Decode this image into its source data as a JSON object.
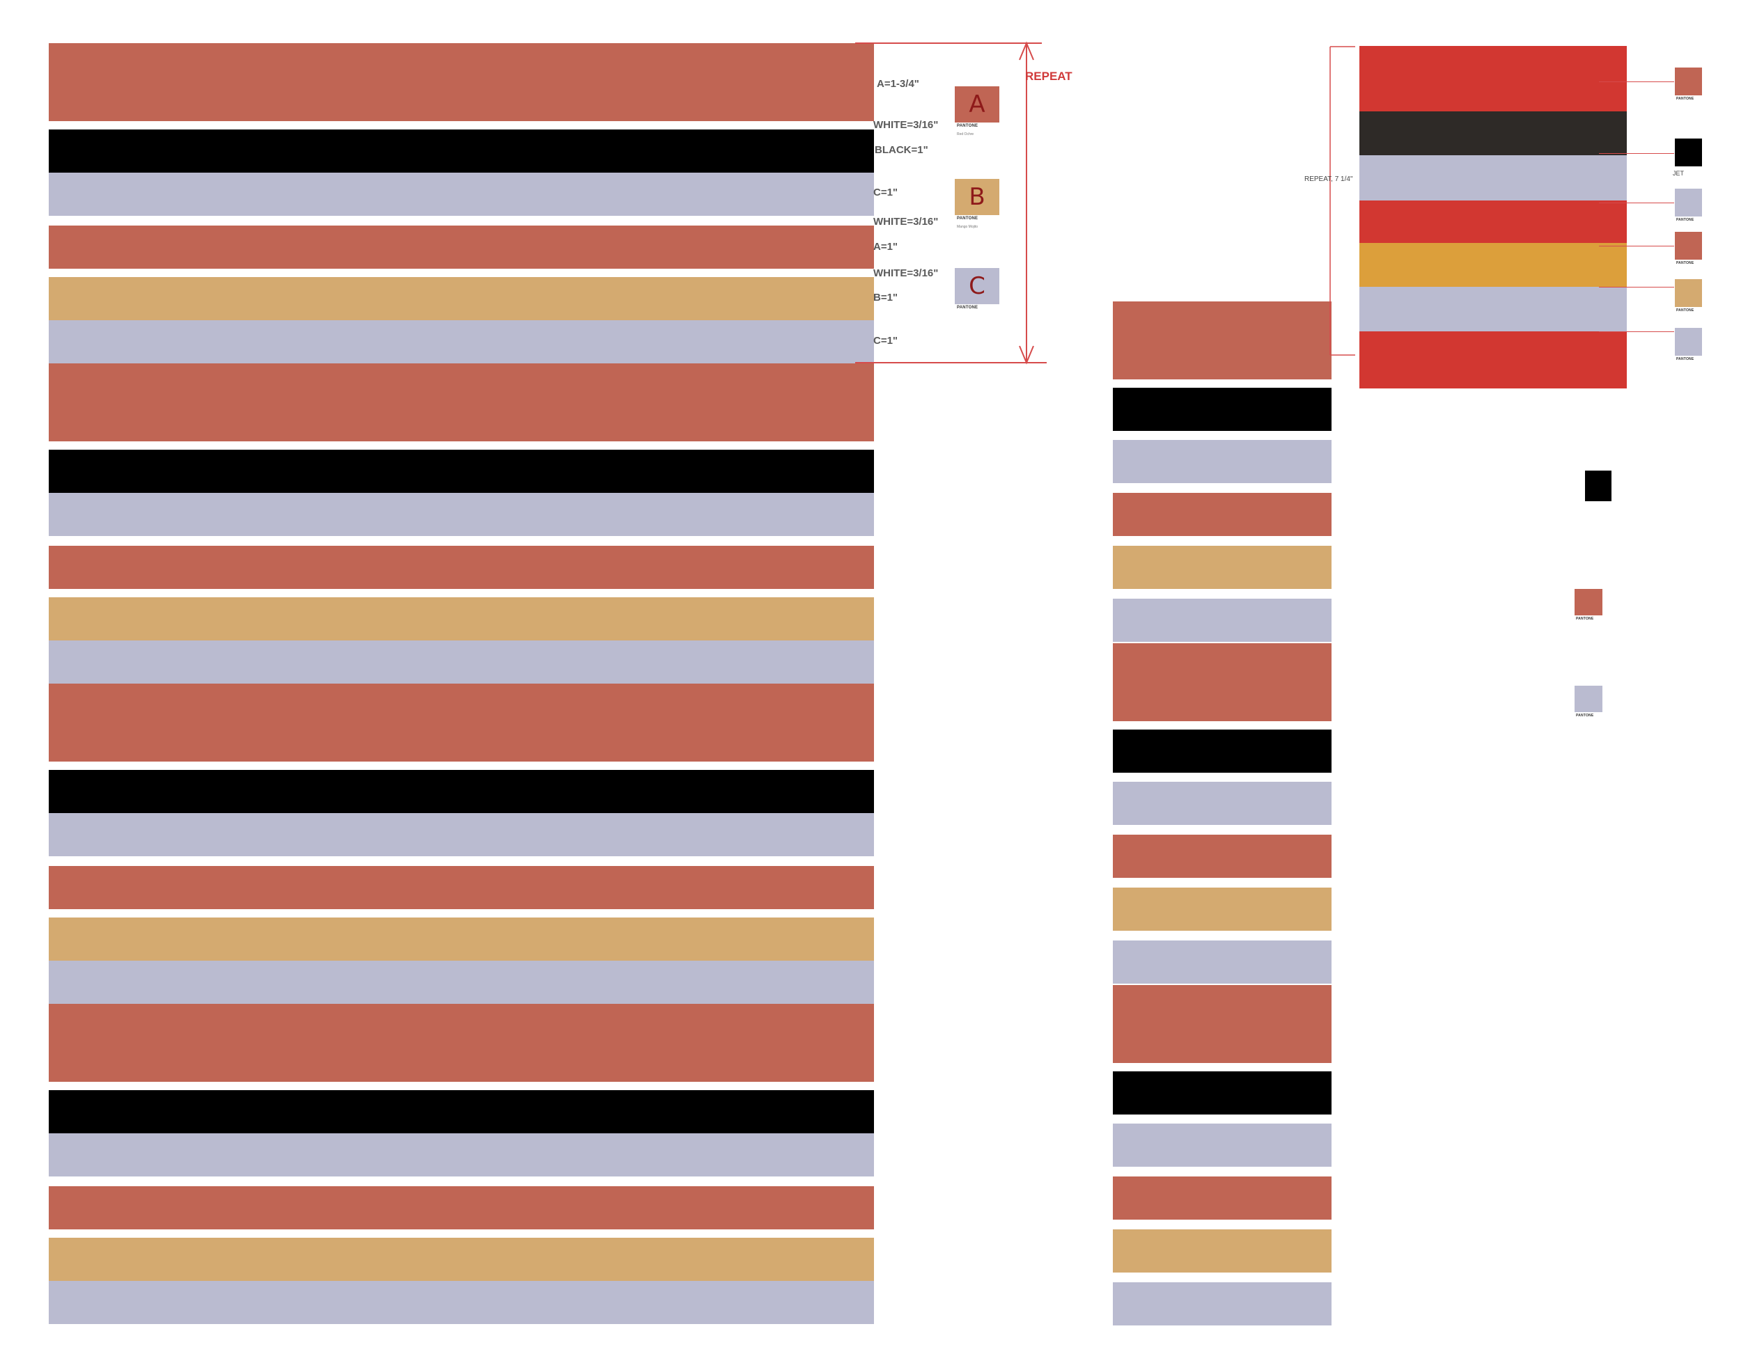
{
  "colors": {
    "A": "#c06554",
    "B": "#d4aa70",
    "C": "#babbd0",
    "black": "#000000",
    "white": "#ffffff",
    "annotation": "#d03a3a",
    "red": "#d23731",
    "dark": "#2e2a27",
    "orange": "#dc9f3b"
  },
  "repeat_sequence": [
    "A",
    "black",
    "C",
    "A",
    "B",
    "C"
  ],
  "spec": {
    "labels": [
      "A=1-3/4\"",
      "WHITE=3/16\"",
      "BLACK=1\"",
      "C=1\"",
      "WHITE=3/16\"",
      "A=1\"",
      "WHITE=3/16\"",
      "B=1\"",
      "C=1\""
    ],
    "repeat_label": "REPEAT"
  },
  "swatches": [
    {
      "letter": "A",
      "brand": "PANTONE",
      "name": "Red Ochre",
      "color": "A"
    },
    {
      "letter": "B",
      "brand": "PANTONE",
      "name": "Mango Mojito",
      "color": "B"
    },
    {
      "letter": "C",
      "brand": "PANTONE",
      "name": "",
      "color": "C"
    }
  ],
  "variant": {
    "repeat_label": "REPEAT, 7 1/4\"",
    "stripes": [
      "red",
      "dark",
      "C",
      "red",
      "orange",
      "C",
      "red"
    ],
    "legend": [
      {
        "color": "A",
        "brand": "PANTONE"
      },
      {
        "color": "black",
        "label": "JET"
      },
      {
        "color": "C",
        "brand": "PANTONE"
      },
      {
        "color": "A",
        "brand": "PANTONE"
      },
      {
        "color": "B",
        "brand": "PANTONE"
      },
      {
        "color": "C",
        "brand": "PANTONE"
      }
    ],
    "loose_swatches": [
      {
        "color": "black"
      },
      {
        "color": "A",
        "brand": "PANTONE"
      },
      {
        "color": "C",
        "brand": "PANTONE"
      }
    ]
  }
}
